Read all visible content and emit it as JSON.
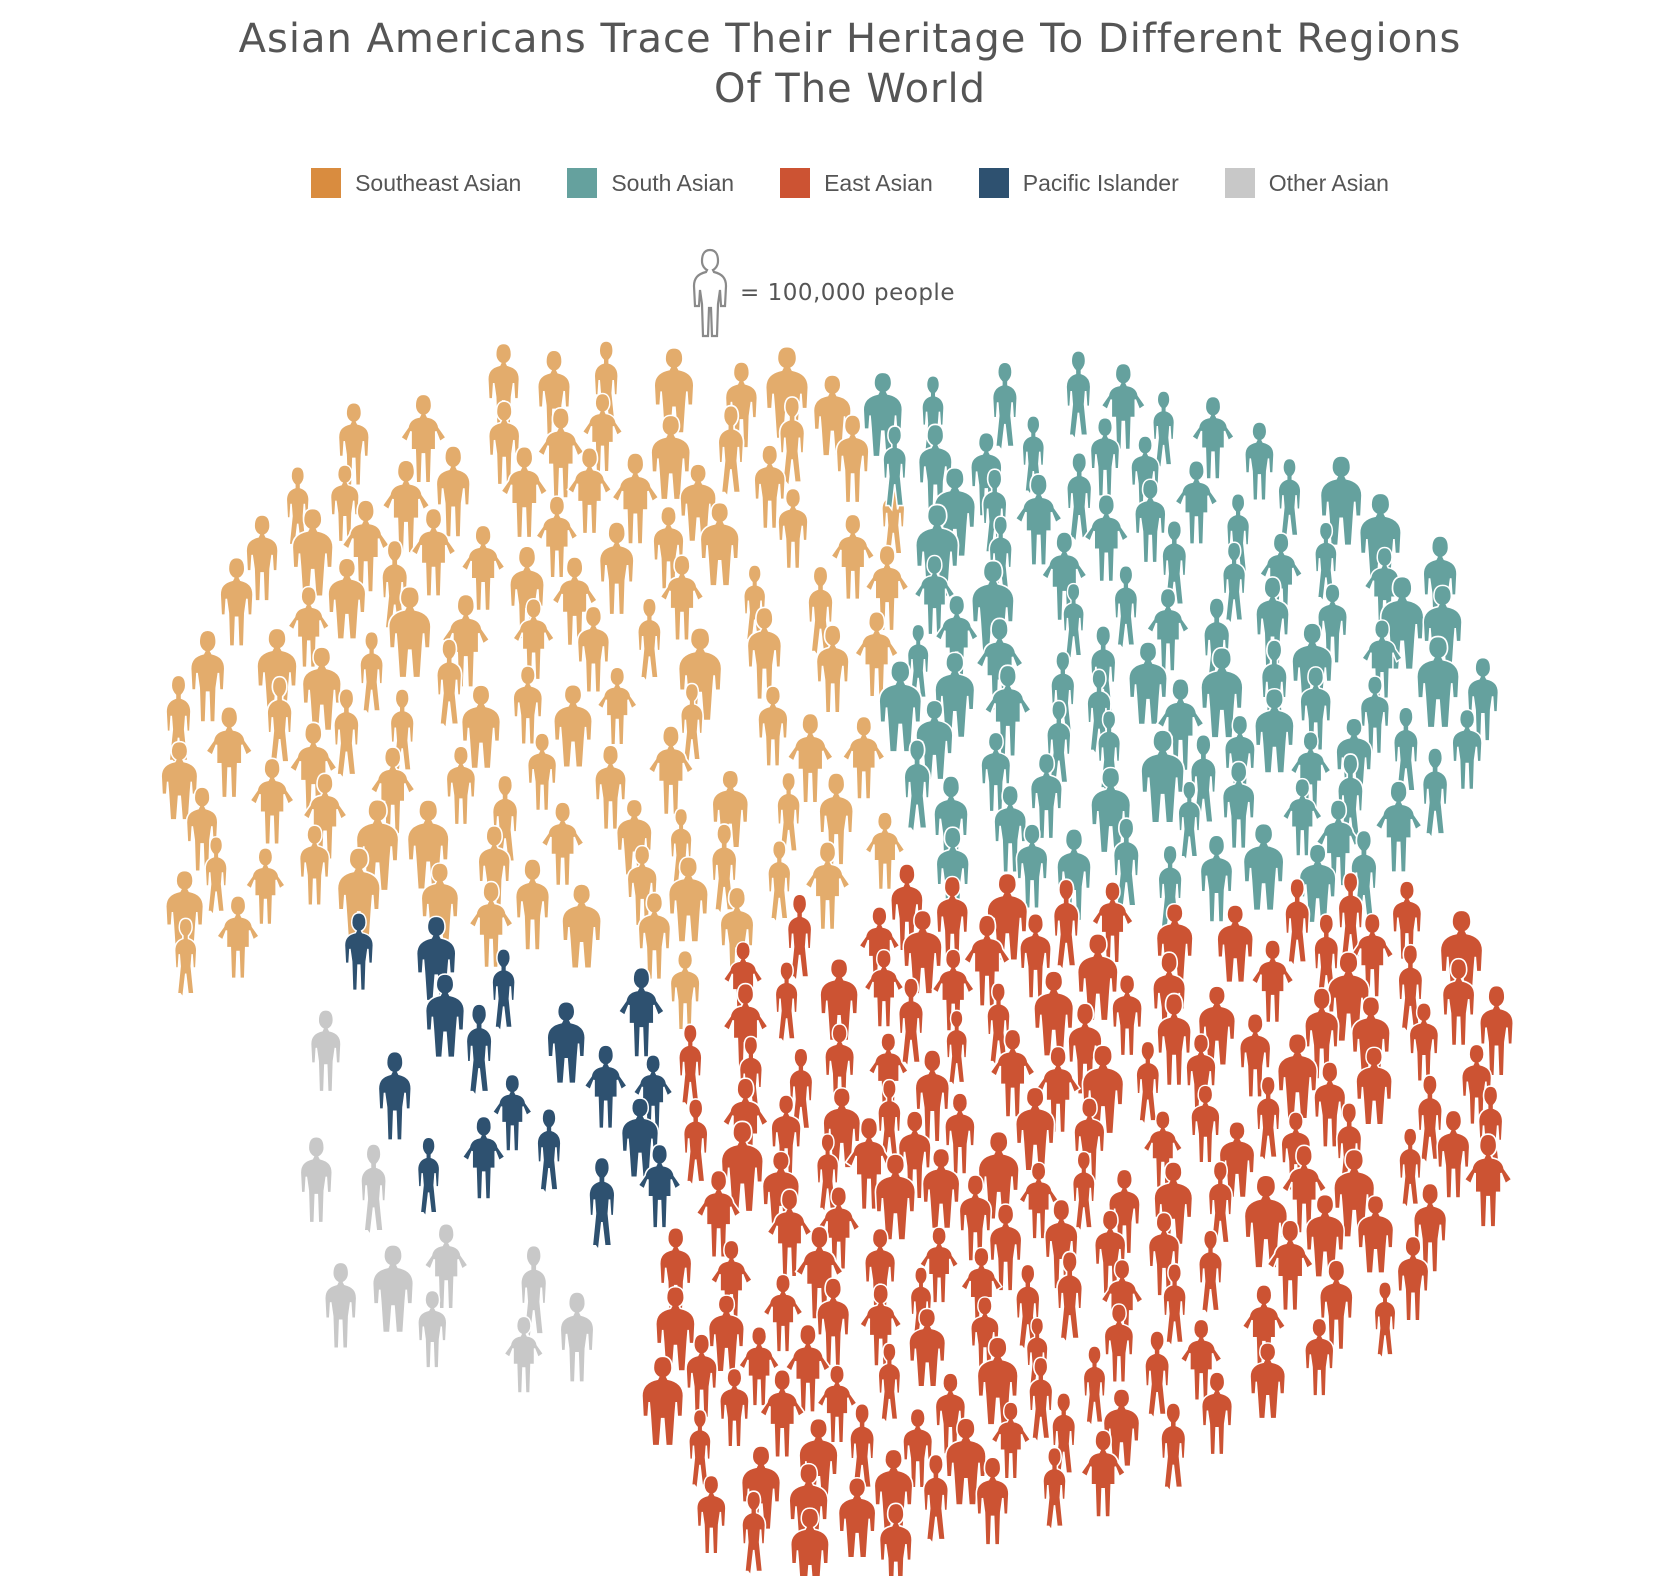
{
  "chart_data": {
    "type": "isotype",
    "title": "Asian Americans Trace Their Heritage To Different Regions Of The World",
    "unit_label": "= 100,000 people",
    "unit_value": 100000,
    "series": [
      {
        "name": "Southeast Asian",
        "color": "#D98C3F",
        "figure_color": "#E3AC6C",
        "icon_count": 114
      },
      {
        "name": "South Asian",
        "color": "#65A19E",
        "figure_color": "#65A19E",
        "icon_count": 96
      },
      {
        "name": "East Asian",
        "color": "#CC5333",
        "figure_color": "#CC5333",
        "icon_count": 168
      },
      {
        "name": "Pacific Islander",
        "color": "#2E5170",
        "figure_color": "#2E5170",
        "icon_count": 17
      },
      {
        "name": "Other Asian",
        "color": "#C8C8C8",
        "figure_color": "#C8C8C8",
        "icon_count": 10
      }
    ]
  }
}
